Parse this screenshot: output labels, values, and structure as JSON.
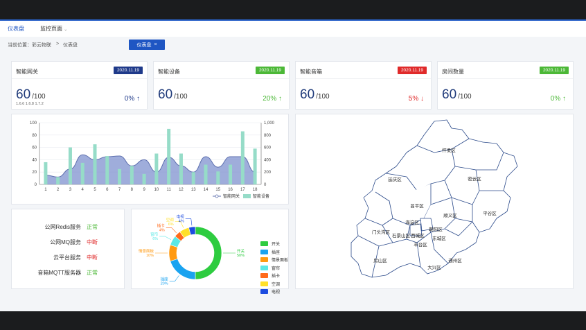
{
  "nav": {
    "dashboard": "仪表盘",
    "monitor": "监控页面"
  },
  "breadcrumb": {
    "prefix": "当前位置：",
    "company": "彩云物联",
    "sep": ">",
    "page": "仪表盘",
    "tab": "仪表盘",
    "tab_close": "×"
  },
  "stats": [
    {
      "title": "智能网关",
      "date": "2020.11.19",
      "date_color": "#1f3a8a",
      "value": "60",
      "max": "/100",
      "sub": "1.6.6 1.6.8 1.7.2",
      "pct": "0%",
      "arrow": "↑",
      "pct_color": "#1f3a8a"
    },
    {
      "title": "智能设备",
      "date": "2020.11.19",
      "date_color": "#4cb837",
      "value": "60",
      "max": "/100",
      "sub": "",
      "pct": "20%",
      "arrow": "↑",
      "pct_color": "#4cb837"
    },
    {
      "title": "智能音箱",
      "date": "2020.11.19",
      "date_color": "#e02a2a",
      "value": "60",
      "max": "/100",
      "sub": "",
      "pct": "5%",
      "arrow": "↓",
      "pct_color": "#e02a2a"
    },
    {
      "title": "房间数量",
      "date": "2020.11.19",
      "date_color": "#4cb837",
      "value": "60",
      "max": "/100",
      "sub": "",
      "pct": "0%",
      "arrow": "↑",
      "pct_color": "#4cb837"
    }
  ],
  "chart_data": [
    {
      "type": "bar",
      "categories": [
        "1",
        "2",
        "3",
        "4",
        "5",
        "6",
        "7",
        "8",
        "9",
        "10",
        "11",
        "12",
        "13",
        "14",
        "15",
        "16",
        "17",
        "18"
      ],
      "series": [
        {
          "name": "智能网关",
          "type": "area",
          "values": [
            15,
            12,
            25,
            48,
            40,
            45,
            46,
            30,
            40,
            20,
            44,
            30,
            20,
            45,
            28,
            45,
            45,
            20
          ]
        },
        {
          "name": "智能设备",
          "type": "bar",
          "values": [
            360,
            120,
            600,
            350,
            650,
            460,
            250,
            300,
            170,
            500,
            900,
            500,
            200,
            320,
            210,
            320,
            860,
            580
          ]
        }
      ],
      "y_left": {
        "min": 0,
        "max": 100,
        "ticks": [
          "0",
          "20",
          "40",
          "60",
          "80",
          "100"
        ]
      },
      "y_right": {
        "min": 0,
        "max": 1000,
        "ticks": [
          "0",
          "200",
          "400",
          "600",
          "800",
          "1,000"
        ]
      },
      "legend_position": "bottom-right",
      "colors": {
        "area": "#7f92cf",
        "line": "#5d6fae",
        "bar": "#96dcc8"
      }
    },
    {
      "type": "pie",
      "donut": true,
      "slices": [
        {
          "label": "开关",
          "value": 50,
          "color": "#2ecc40"
        },
        {
          "label": "插座",
          "value": 20,
          "color": "#1aa3f0"
        },
        {
          "label": "情景面板",
          "value": 10,
          "color": "#ff9a12"
        },
        {
          "label": "窗帘",
          "value": 6,
          "color": "#5be8e6"
        },
        {
          "label": "插卡",
          "value": 4,
          "color": "#ff6a1a"
        },
        {
          "label": "空调",
          "value": 6,
          "color": "#ffe02a"
        },
        {
          "label": "电视",
          "value": 4,
          "color": "#1c4ce0"
        }
      ],
      "callouts": [
        {
          "label": "开关",
          "pct": "50%"
        },
        {
          "label": "插座",
          "pct": "20%"
        },
        {
          "label": "情景面板",
          "pct": "10%"
        },
        {
          "label": "窗帘",
          "pct": "6%"
        },
        {
          "label": "插卡",
          "pct": "4%"
        },
        {
          "label": "空调",
          "pct": "6%"
        },
        {
          "label": "电视",
          "pct": "4%"
        }
      ]
    }
  ],
  "services": [
    {
      "name": "公网Redis服务",
      "status": "正常",
      "color": "#4cb837"
    },
    {
      "name": "公网MQ服务",
      "status": "中断",
      "color": "#e02a2a"
    },
    {
      "name": "云平台服务",
      "status": "中断",
      "color": "#e02a2a"
    },
    {
      "name": "音箱MQTT服务器",
      "status": "正常",
      "color": "#4cb837"
    }
  ],
  "map": {
    "districts": [
      "怀柔区",
      "延庆区",
      "密云区",
      "昌平区",
      "平谷区",
      "顺义区",
      "门头沟区",
      "海淀区",
      "朝阳区",
      "石景山区",
      "西城区",
      "东城区",
      "丰台区",
      "房山区",
      "通州区",
      "大兴区"
    ],
    "line_color": "#2b4a8a"
  }
}
